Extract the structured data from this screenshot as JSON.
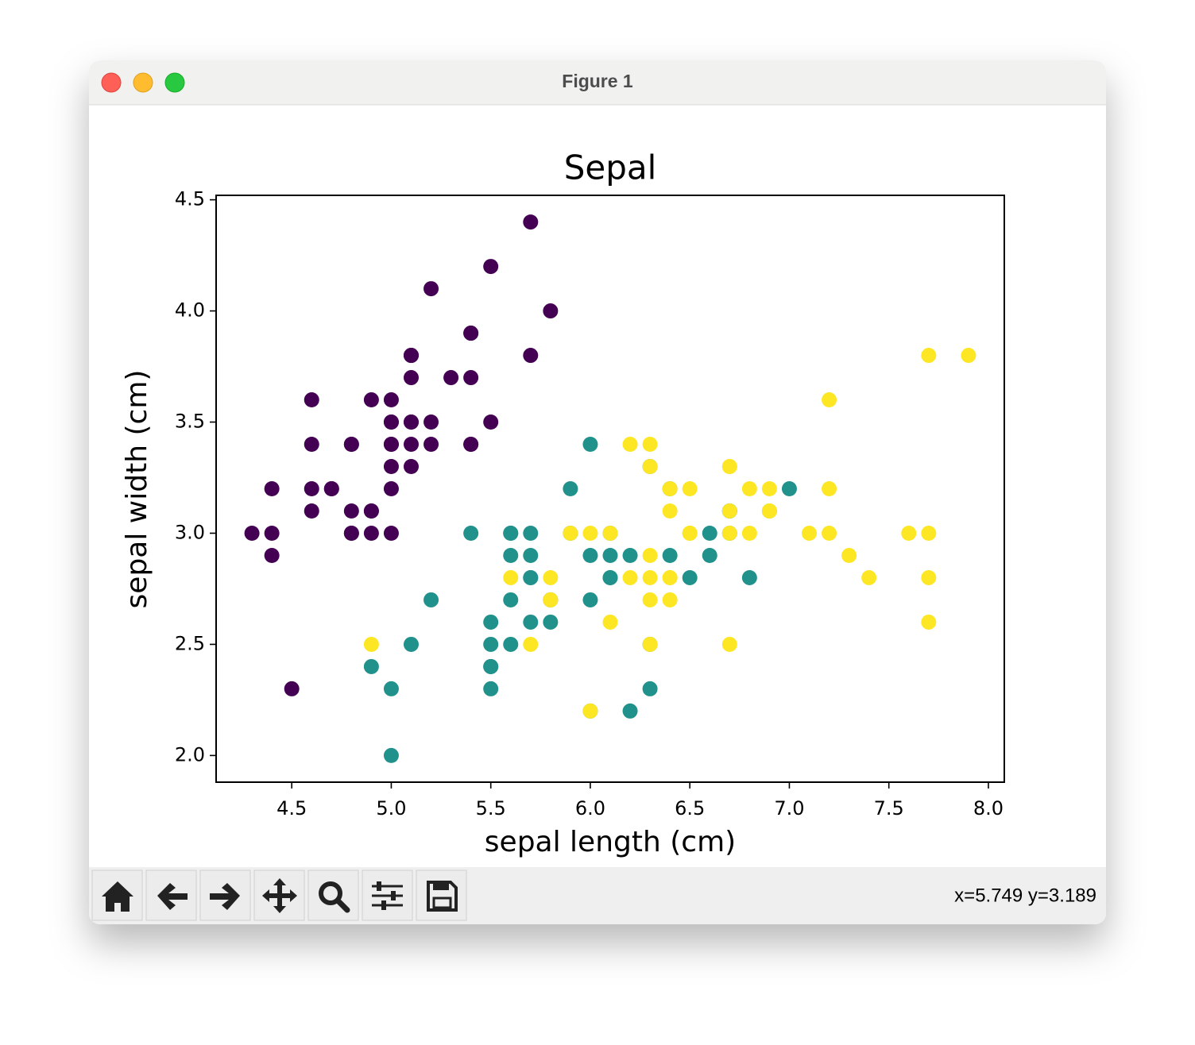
{
  "window": {
    "title": "Figure 1",
    "status": "x=5.749 y=3.189"
  },
  "chart_data": {
    "type": "scatter",
    "title": "Sepal",
    "xlabel": "sepal length (cm)",
    "ylabel": "sepal width (cm)",
    "xlim": [
      4.12,
      8.08
    ],
    "ylim": [
      1.88,
      4.52
    ],
    "xticks": [
      4.5,
      {
        "value": 5,
        "label": "5.0"
      },
      5.5,
      {
        "value": 6,
        "label": "6.0"
      },
      6.5,
      {
        "value": 7,
        "label": "7.0"
      },
      7.5,
      {
        "value": 8,
        "label": "8.0"
      }
    ],
    "yticks": [
      {
        "value": 2,
        "label": "2.0"
      },
      2.5,
      {
        "value": 3,
        "label": "3.0"
      },
      3.5,
      {
        "value": 4,
        "label": "4.0"
      },
      4.5
    ],
    "series": [
      {
        "color": "#440154",
        "x": [
          5.1,
          4.9,
          4.7,
          4.6,
          5.0,
          5.4,
          4.6,
          5.0,
          4.4,
          4.9,
          5.4,
          4.8,
          4.8,
          4.3,
          5.8,
          5.7,
          5.4,
          5.1,
          5.7,
          5.1,
          5.4,
          5.1,
          4.6,
          5.1,
          4.8,
          5.0,
          5.0,
          5.2,
          5.2,
          4.7,
          4.8,
          5.4,
          5.2,
          5.5,
          4.9,
          5.0,
          5.5,
          4.9,
          4.4,
          5.1,
          5.0,
          4.5,
          4.4,
          5.0,
          5.1,
          4.8,
          5.1,
          4.6,
          5.3,
          5.0
        ],
        "values": [
          3.5,
          3.0,
          3.2,
          3.1,
          3.6,
          3.9,
          3.4,
          3.4,
          2.9,
          3.1,
          3.7,
          3.4,
          3.0,
          3.0,
          4.0,
          4.4,
          3.9,
          3.5,
          3.8,
          3.8,
          3.4,
          3.7,
          3.6,
          3.3,
          3.4,
          3.0,
          3.4,
          3.5,
          3.4,
          3.2,
          3.1,
          3.4,
          4.1,
          4.2,
          3.1,
          3.2,
          3.5,
          3.6,
          3.0,
          3.4,
          3.5,
          2.3,
          3.2,
          3.5,
          3.8,
          3.0,
          3.8,
          3.2,
          3.7,
          3.3
        ]
      },
      {
        "color": "#21918c",
        "x": [
          7.0,
          6.4,
          6.9,
          5.5,
          6.5,
          5.7,
          6.3,
          4.9,
          6.6,
          5.2,
          5.0,
          5.9,
          6.0,
          6.1,
          5.6,
          6.7,
          5.6,
          5.8,
          6.2,
          5.6,
          5.9,
          6.1,
          6.3,
          6.1,
          6.4,
          6.6,
          6.8,
          6.7,
          6.0,
          5.7,
          5.5,
          5.5,
          5.8,
          6.0,
          5.4,
          6.0,
          6.7,
          6.3,
          5.6,
          5.5,
          5.5,
          6.1,
          5.8,
          5.0,
          5.6,
          5.7,
          5.7,
          6.2,
          5.1,
          5.7
        ],
        "values": [
          3.2,
          3.2,
          3.1,
          2.3,
          2.8,
          2.8,
          3.3,
          2.4,
          2.9,
          2.7,
          2.0,
          3.0,
          2.2,
          2.9,
          2.9,
          3.1,
          3.0,
          2.7,
          2.2,
          2.5,
          3.2,
          2.8,
          2.5,
          2.8,
          2.9,
          3.0,
          2.8,
          3.0,
          2.9,
          2.6,
          2.4,
          2.4,
          2.7,
          2.7,
          3.0,
          3.4,
          3.1,
          2.3,
          3.0,
          2.5,
          2.6,
          3.0,
          2.6,
          2.3,
          2.7,
          3.0,
          2.9,
          2.9,
          2.5,
          2.8
        ]
      },
      {
        "color": "#fde725",
        "x": [
          6.3,
          5.8,
          7.1,
          6.3,
          6.5,
          7.6,
          4.9,
          7.3,
          6.7,
          7.2,
          6.5,
          6.4,
          6.8,
          5.7,
          5.8,
          6.4,
          6.5,
          7.7,
          7.7,
          6.0,
          6.9,
          5.6,
          7.7,
          6.3,
          6.7,
          7.2,
          6.2,
          6.1,
          6.4,
          7.2,
          7.4,
          7.9,
          6.4,
          6.3,
          6.1,
          7.7,
          6.3,
          6.4,
          6.0,
          6.9,
          6.7,
          6.9,
          5.8,
          6.8,
          6.7,
          6.7,
          6.3,
          6.5,
          6.2,
          5.9
        ],
        "values": [
          3.3,
          2.7,
          3.0,
          2.9,
          3.0,
          3.0,
          2.5,
          2.9,
          2.5,
          3.6,
          3.2,
          2.7,
          3.0,
          2.5,
          2.8,
          3.2,
          3.0,
          3.8,
          2.6,
          2.2,
          3.2,
          2.8,
          2.8,
          2.7,
          3.3,
          3.2,
          2.8,
          3.0,
          2.8,
          3.0,
          2.8,
          3.8,
          2.8,
          2.8,
          2.6,
          3.0,
          3.4,
          3.1,
          3.0,
          3.1,
          3.1,
          3.1,
          2.7,
          3.2,
          3.3,
          3.0,
          2.5,
          3.0,
          3.4,
          3.0
        ]
      }
    ]
  }
}
